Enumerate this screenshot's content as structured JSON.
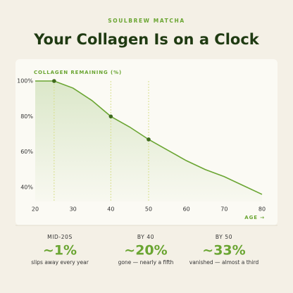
{
  "brand": "SOULBREW MATCHA",
  "chart_data": {
    "type": "line",
    "title": "Your Collagen Is on a Clock",
    "y_label": "COLLAGEN REMAINING (%)",
    "x_label": "AGE →",
    "x": [
      20,
      25,
      30,
      35,
      40,
      45,
      50,
      55,
      60,
      65,
      70,
      75,
      80
    ],
    "series": [
      {
        "name": "Collagen remaining",
        "color": "#6aa532",
        "values": [
          100,
          100,
          96,
          89,
          80,
          74,
          67,
          61,
          55,
          50,
          46,
          41,
          36
        ]
      }
    ],
    "highlight_x": [
      25,
      40,
      50
    ],
    "xlim": [
      20,
      80
    ],
    "xticks": [
      20,
      30,
      40,
      50,
      60,
      70,
      80
    ],
    "ylim": [
      32,
      100
    ],
    "yticks": [
      {
        "value": 100,
        "label": "100%"
      },
      {
        "value": 80,
        "label": "80%"
      },
      {
        "value": 60,
        "label": "60%"
      },
      {
        "value": 40,
        "label": "40%"
      }
    ]
  },
  "stats": [
    {
      "label": "MID-20S",
      "value": "~1%",
      "note": "slips away every year"
    },
    {
      "label": "BY 40",
      "value": "~20%",
      "note": "gone — nearly a fifth"
    },
    {
      "label": "BY 50",
      "value": "~33%",
      "note": "vanished — almost a third"
    }
  ]
}
